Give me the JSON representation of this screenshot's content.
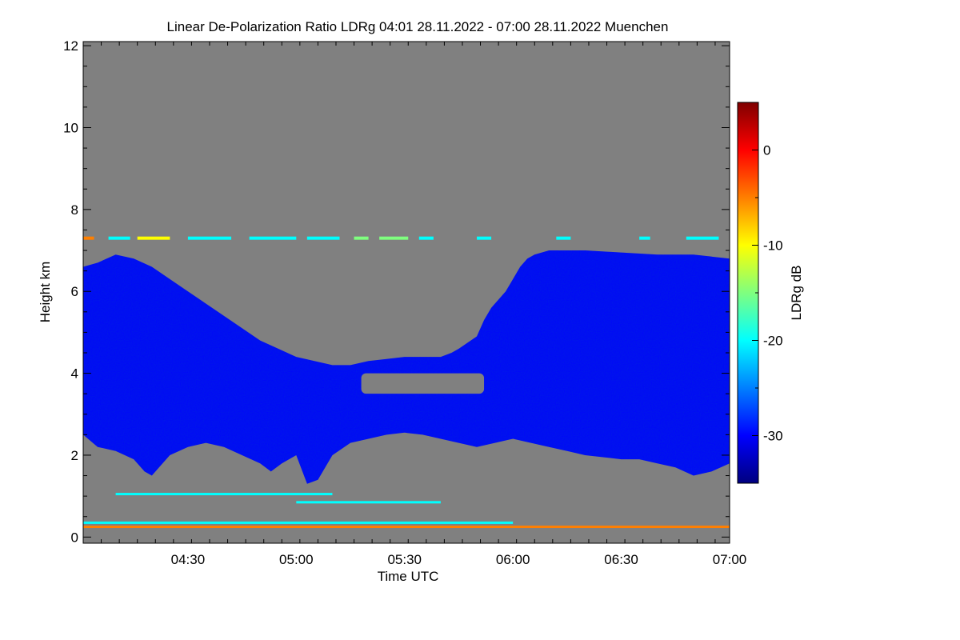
{
  "chart_data": {
    "type": "heatmap",
    "title": "Linear De-Polarization Ratio LDRg   04:01 28.11.2022 - 07:00 28.11.2022 Muenchen",
    "xlabel": "Time UTC",
    "ylabel": "Height km",
    "colorbar_label": "LDRg dB",
    "x_range_minutes": [
      241,
      420
    ],
    "y_range_km": [
      -0.15,
      12.1
    ],
    "x_ticks": [
      {
        "label": "04:30",
        "minutes": 270
      },
      {
        "label": "05:00",
        "minutes": 300
      },
      {
        "label": "05:30",
        "minutes": 330
      },
      {
        "label": "06:00",
        "minutes": 360
      },
      {
        "label": "06:30",
        "minutes": 390
      },
      {
        "label": "07:00",
        "minutes": 420
      }
    ],
    "y_ticks": [
      {
        "label": "0",
        "value": 0
      },
      {
        "label": "2",
        "value": 2
      },
      {
        "label": "4",
        "value": 4
      },
      {
        "label": "6",
        "value": 6
      },
      {
        "label": "8",
        "value": 8
      },
      {
        "label": "10",
        "value": 10
      },
      {
        "label": "12",
        "value": 12
      }
    ],
    "colorbar_range_db": [
      -35,
      5
    ],
    "colorbar_ticks": [
      {
        "label": "0",
        "value": 0
      },
      {
        "label": "-10",
        "value": -10
      },
      {
        "label": "-20",
        "value": -20
      },
      {
        "label": "-30",
        "value": -30
      }
    ],
    "background_color": "#808080",
    "colormap": [
      "#00007f",
      "#0000ff",
      "#007fff",
      "#00ffff",
      "#7fff7f",
      "#ffff00",
      "#ff7f00",
      "#ff0000",
      "#7f0000"
    ],
    "cloud_layer": {
      "ldr_db": -29,
      "top_km": [
        [
          241,
          6.6
        ],
        [
          245,
          6.7
        ],
        [
          250,
          6.9
        ],
        [
          255,
          6.8
        ],
        [
          260,
          6.6
        ],
        [
          265,
          6.3
        ],
        [
          270,
          6.0
        ],
        [
          275,
          5.7
        ],
        [
          280,
          5.4
        ],
        [
          285,
          5.1
        ],
        [
          290,
          4.8
        ],
        [
          295,
          4.6
        ],
        [
          300,
          4.4
        ],
        [
          305,
          4.3
        ],
        [
          310,
          4.2
        ],
        [
          315,
          4.2
        ],
        [
          320,
          4.3
        ],
        [
          325,
          4.35
        ],
        [
          330,
          4.4
        ],
        [
          335,
          4.4
        ],
        [
          340,
          4.4
        ],
        [
          343,
          4.5
        ],
        [
          345,
          4.6
        ],
        [
          350,
          4.9
        ],
        [
          352,
          5.3
        ],
        [
          354,
          5.6
        ],
        [
          356,
          5.8
        ],
        [
          358,
          6.0
        ],
        [
          360,
          6.3
        ],
        [
          362,
          6.6
        ],
        [
          364,
          6.8
        ],
        [
          366,
          6.9
        ],
        [
          370,
          7.0
        ],
        [
          380,
          7.0
        ],
        [
          390,
          6.95
        ],
        [
          400,
          6.9
        ],
        [
          410,
          6.9
        ],
        [
          420,
          6.8
        ]
      ],
      "base_km": [
        [
          241,
          2.5
        ],
        [
          245,
          2.2
        ],
        [
          250,
          2.1
        ],
        [
          255,
          1.9
        ],
        [
          258,
          1.6
        ],
        [
          260,
          1.5
        ],
        [
          262,
          1.7
        ],
        [
          265,
          2.0
        ],
        [
          270,
          2.2
        ],
        [
          275,
          2.3
        ],
        [
          280,
          2.2
        ],
        [
          285,
          2.0
        ],
        [
          290,
          1.8
        ],
        [
          293,
          1.6
        ],
        [
          296,
          1.8
        ],
        [
          300,
          2.0
        ],
        [
          303,
          1.3
        ],
        [
          306,
          1.4
        ],
        [
          310,
          2.0
        ],
        [
          315,
          2.3
        ],
        [
          320,
          2.4
        ],
        [
          325,
          2.5
        ],
        [
          330,
          2.55
        ],
        [
          335,
          2.5
        ],
        [
          340,
          2.4
        ],
        [
          345,
          2.3
        ],
        [
          350,
          2.2
        ],
        [
          355,
          2.3
        ],
        [
          360,
          2.4
        ],
        [
          365,
          2.3
        ],
        [
          370,
          2.2
        ],
        [
          375,
          2.1
        ],
        [
          380,
          2.0
        ],
        [
          385,
          1.95
        ],
        [
          390,
          1.9
        ],
        [
          395,
          1.9
        ],
        [
          400,
          1.8
        ],
        [
          405,
          1.7
        ],
        [
          410,
          1.5
        ],
        [
          415,
          1.6
        ],
        [
          420,
          1.8
        ]
      ]
    },
    "gap_region": {
      "minutes": [
        318,
        352
      ],
      "km": [
        3.5,
        4.0
      ]
    },
    "cirrus_line": {
      "height_km": 7.3,
      "ldr_db": -21,
      "segments": [
        [
          241,
          244,
          -7
        ],
        [
          248,
          254,
          -21
        ],
        [
          256,
          265,
          -8
        ],
        [
          270,
          282,
          -21
        ],
        [
          287,
          300,
          -21
        ],
        [
          303,
          312,
          -21
        ],
        [
          316,
          320,
          -16
        ],
        [
          323,
          331,
          -15
        ],
        [
          334,
          338,
          -21
        ],
        [
          350,
          354,
          -21
        ],
        [
          372,
          376,
          -21
        ],
        [
          395,
          398,
          -21
        ],
        [
          408,
          417,
          -21
        ]
      ]
    },
    "surface_layers": [
      {
        "height_km": 0.25,
        "ldr_db": -5,
        "minutes": [
          241,
          420
        ]
      },
      {
        "height_km": 0.35,
        "ldr_db": -20,
        "minutes": [
          241,
          360
        ]
      },
      {
        "height_km": 0.85,
        "ldr_db": -20,
        "minutes": [
          300,
          340
        ]
      },
      {
        "height_km": 1.05,
        "ldr_db": -22,
        "minutes": [
          250,
          310
        ]
      }
    ]
  }
}
